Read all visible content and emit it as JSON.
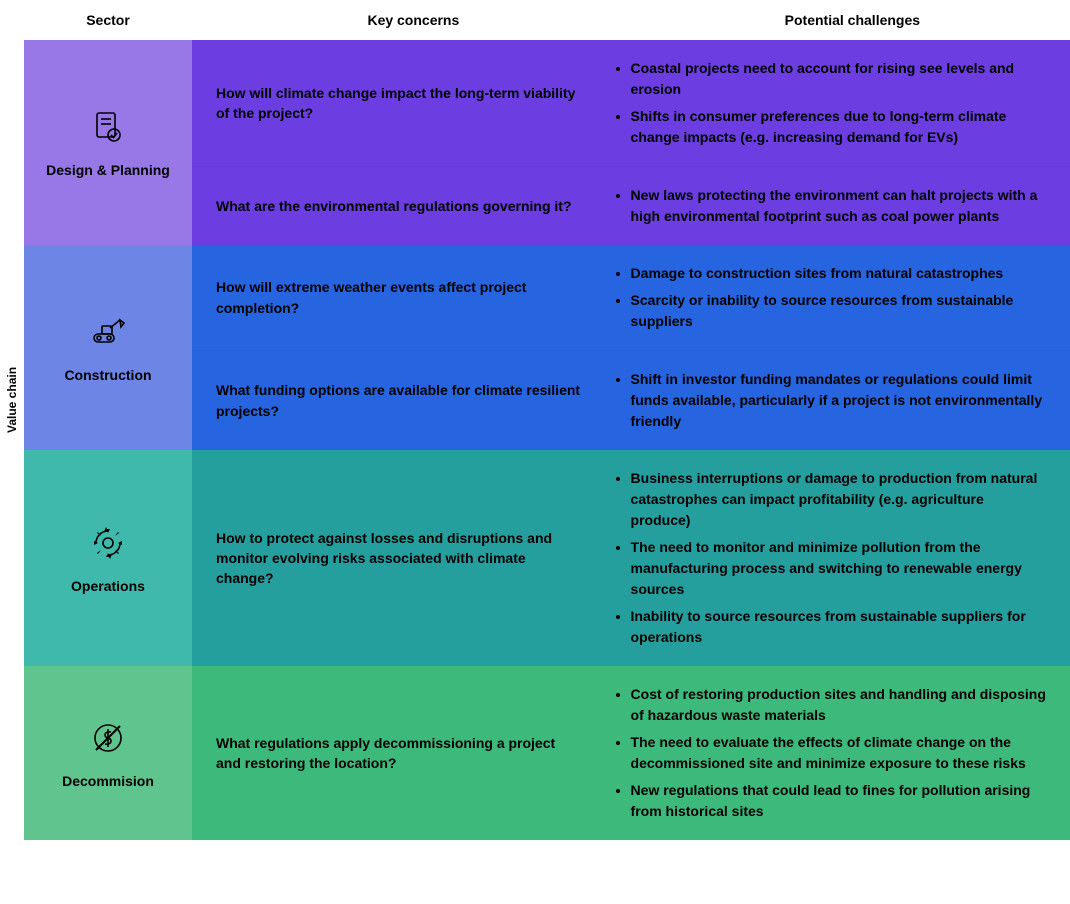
{
  "yAxisLabel": "Value chain",
  "headers": {
    "sector": "Sector",
    "keyConcerns": "Key concerns",
    "potentialChallenges": "Potential challenges"
  },
  "colors": {
    "designPlanning": {
      "sectorBg": "#9877e6",
      "contentBg": "#6c3de0"
    },
    "construction": {
      "sectorBg": "#6d86e6",
      "contentBg": "#2665df"
    },
    "operations": {
      "sectorBg": "#3fb9ab",
      "contentBg": "#259e9e"
    },
    "decommission": {
      "sectorBg": "#5fc48e",
      "contentBg": "#3db97b"
    },
    "textOnColor": "#000000",
    "headerText": "#000000"
  },
  "typography": {
    "fontFamily": "Arial, Helvetica, sans-serif",
    "bodyFontSize": 14,
    "headerFontSize": 14,
    "lineHeight": 1.5,
    "bold": true
  },
  "sectors": [
    {
      "id": "designPlanning",
      "label": "Design & Planning",
      "iconName": "document-check-icon",
      "rows": [
        {
          "concern": "How will climate change impact the long-term viability of the project?",
          "challenges": [
            "Coastal projects need to account for rising see levels and erosion",
            "Shifts in consumer preferences due to long-term climate change impacts (e.g. increasing demand for EVs)"
          ]
        },
        {
          "concern": "What are the environmental regulations governing it?",
          "challenges": [
            "New laws protecting the environment can halt projects with a high environmental footprint such as coal power plants"
          ]
        }
      ]
    },
    {
      "id": "construction",
      "label": "Construction",
      "iconName": "excavator-icon",
      "rows": [
        {
          "concern": "How will extreme weather events affect project completion?",
          "challenges": [
            "Damage to construction sites from natural catastrophes",
            "Scarcity or inability to source resources from sustainable suppliers"
          ]
        },
        {
          "concern": "What funding options are available for climate resilient projects?",
          "challenges": [
            "Shift in investor funding mandates or regulations could limit funds available, particularly if a project is not environmentally friendly"
          ]
        }
      ]
    },
    {
      "id": "operations",
      "label": "Operations",
      "iconName": "gear-refresh-icon",
      "rows": [
        {
          "concern": "How to protect against losses and disruptions and monitor evolving risks associated with climate change?",
          "challenges": [
            "Business interruptions or damage to production from natural catastrophes can impact profitability (e.g. agriculture produce)",
            "The need to monitor and minimize pollution from the manufacturing process and switching to renewable energy sources",
            "Inability to source resources from sustainable suppliers for operations"
          ]
        }
      ]
    },
    {
      "id": "decommission",
      "label": "Decommision",
      "iconName": "no-dollar-icon",
      "rows": [
        {
          "concern": "What regulations apply decommissioning a project and restoring the location?",
          "challenges": [
            "Cost of restoring production sites and handling and disposing of hazardous waste materials",
            "The need to evaluate the effects of climate change on the decommissioned site and minimize exposure to these risks",
            "New regulations that could lead to fines for pollution arising from historical sites"
          ]
        }
      ]
    }
  ]
}
